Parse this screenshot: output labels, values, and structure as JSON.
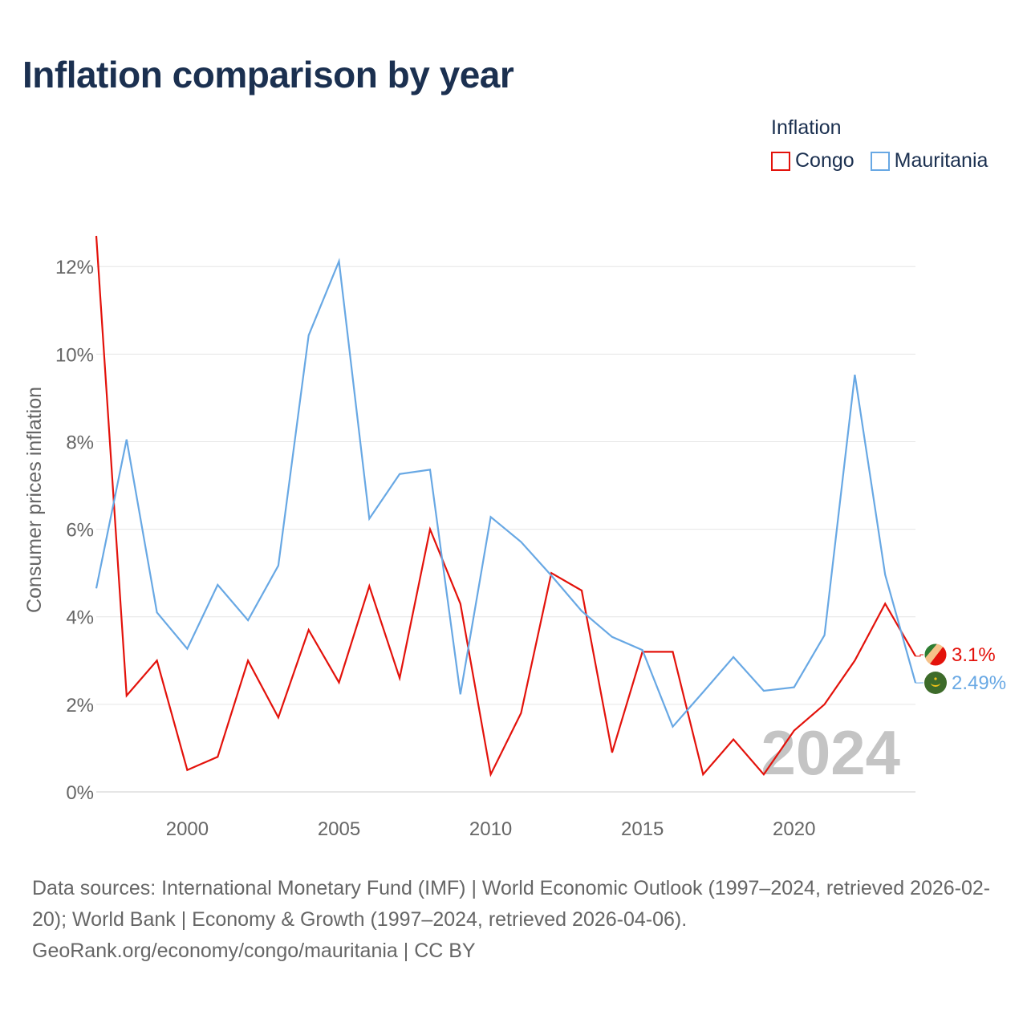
{
  "title": "Inflation comparison by year",
  "legend": {
    "title": "Inflation",
    "items": [
      {
        "label": "Congo",
        "color": "#e3120b"
      },
      {
        "label": "Mauritania",
        "color": "#68a8e4"
      }
    ]
  },
  "footer": {
    "sources": "Data sources: International Monetary Fund (IMF) | World Economic Outlook (1997–2024, retrieved 2026-02-20); World Bank | Economy & Growth (1997–2024, retrieved 2026-04-06).",
    "credit": "GeoRank.org/economy/congo/mauritania | CC BY"
  },
  "chart_data": {
    "type": "line",
    "title": "Inflation comparison by year",
    "xlabel": "",
    "ylabel": "Consumer prices inflation",
    "xlim": [
      1997,
      2024
    ],
    "ylim": [
      0,
      12.7
    ],
    "yticks": [
      0,
      2,
      4,
      6,
      8,
      10,
      12
    ],
    "ytick_labels": [
      "0%",
      "2%",
      "4%",
      "6%",
      "8%",
      "10%",
      "12%"
    ],
    "xticks": [
      2000,
      2005,
      2010,
      2015,
      2020
    ],
    "xtick_labels": [
      "2000",
      "2005",
      "2010",
      "2015",
      "2020"
    ],
    "grid": true,
    "year_watermark": "2024",
    "x": [
      1997,
      1998,
      1999,
      2000,
      2001,
      2002,
      2003,
      2004,
      2005,
      2006,
      2007,
      2008,
      2009,
      2010,
      2011,
      2012,
      2013,
      2014,
      2015,
      2016,
      2017,
      2018,
      2019,
      2020,
      2021,
      2022,
      2023,
      2024
    ],
    "series": [
      {
        "name": "Congo",
        "color": "#e3120b",
        "end_label": "3.1%",
        "values": [
          12.7,
          2.2,
          3.0,
          0.5,
          0.8,
          3.0,
          1.7,
          3.7,
          2.5,
          4.7,
          2.6,
          6.0,
          4.3,
          0.4,
          1.8,
          5.0,
          4.6,
          0.9,
          3.2,
          3.2,
          0.4,
          1.2,
          0.4,
          1.4,
          2.0,
          3.0,
          4.3,
          3.1
        ]
      },
      {
        "name": "Mauritania",
        "color": "#68a8e4",
        "end_label": "2.49%",
        "values": [
          4.65,
          8.05,
          4.1,
          3.27,
          4.73,
          3.92,
          5.17,
          10.43,
          12.12,
          6.24,
          7.26,
          7.36,
          2.23,
          6.28,
          5.71,
          4.94,
          4.13,
          3.54,
          3.24,
          1.49,
          2.28,
          3.08,
          2.31,
          2.39,
          3.58,
          9.53,
          4.96,
          2.49
        ]
      }
    ]
  }
}
